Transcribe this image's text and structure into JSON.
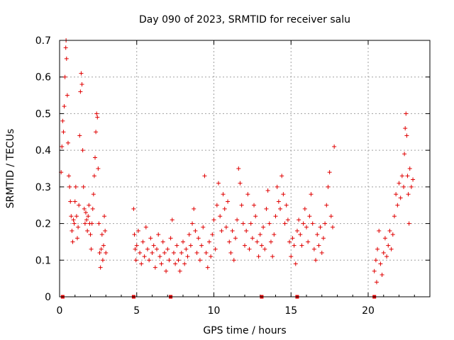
{
  "chart_data": {
    "type": "scatter",
    "title": "Day 090 of 2023, SRMTID for receiver salu",
    "xlabel": "GPS time / hours",
    "ylabel": "SRMTID / TECUs",
    "xlim": [
      0,
      24
    ],
    "ylim": [
      0,
      0.7
    ],
    "x_ticks": [
      0,
      5,
      10,
      15,
      20
    ],
    "y_ticks": [
      0,
      0.1,
      0.2,
      0.3,
      0.4,
      0.5,
      0.6,
      0.7
    ],
    "x_tick_labels": [
      "0",
      "5",
      "10",
      "15",
      "20"
    ],
    "y_tick_labels": [
      "0",
      "0.1",
      "0.2",
      "0.3",
      "0.4",
      "0.5",
      "0.6",
      "0.7"
    ],
    "grid": true,
    "marker": "+",
    "series": [
      {
        "name": "SRMTID",
        "color": "#e00000",
        "points": [
          [
            0.1,
            0.34
          ],
          [
            0.15,
            0.41
          ],
          [
            0.2,
            0.48
          ],
          [
            0.25,
            0.45
          ],
          [
            0.3,
            0.52
          ],
          [
            0.35,
            0.6
          ],
          [
            0.4,
            0.68
          ],
          [
            0.42,
            0.7
          ],
          [
            0.45,
            0.65
          ],
          [
            0.5,
            0.55
          ],
          [
            0.55,
            0.42
          ],
          [
            0.6,
            0.33
          ],
          [
            0.65,
            0.3
          ],
          [
            0.7,
            0.26
          ],
          [
            0.75,
            0.22
          ],
          [
            0.8,
            0.18
          ],
          [
            0.85,
            0.15
          ],
          [
            0.9,
            0.21
          ],
          [
            0.95,
            0.2
          ],
          [
            1.0,
            0.26
          ],
          [
            1.05,
            0.3
          ],
          [
            1.1,
            0.22
          ],
          [
            1.15,
            0.16
          ],
          [
            1.2,
            0.19
          ],
          [
            1.25,
            0.25
          ],
          [
            1.3,
            0.44
          ],
          [
            1.35,
            0.56
          ],
          [
            1.4,
            0.61
          ],
          [
            1.45,
            0.58
          ],
          [
            1.5,
            0.4
          ],
          [
            1.55,
            0.3
          ],
          [
            1.6,
            0.24
          ],
          [
            1.65,
            0.2
          ],
          [
            1.7,
            0.23
          ],
          [
            1.75,
            0.21
          ],
          [
            1.8,
            0.18
          ],
          [
            1.85,
            0.22
          ],
          [
            1.9,
            0.25
          ],
          [
            1.95,
            0.2
          ],
          [
            2.0,
            0.17
          ],
          [
            2.05,
            0.13
          ],
          [
            2.1,
            0.2
          ],
          [
            2.15,
            0.24
          ],
          [
            2.2,
            0.28
          ],
          [
            2.25,
            0.33
          ],
          [
            2.3,
            0.38
          ],
          [
            2.35,
            0.45
          ],
          [
            2.4,
            0.5
          ],
          [
            2.45,
            0.49
          ],
          [
            2.5,
            0.35
          ],
          [
            2.55,
            0.2
          ],
          [
            2.6,
            0.12
          ],
          [
            2.65,
            0.08
          ],
          [
            2.7,
            0.13
          ],
          [
            2.75,
            0.17
          ],
          [
            2.8,
            0.1
          ],
          [
            2.85,
            0.14
          ],
          [
            2.9,
            0.22
          ],
          [
            2.95,
            0.18
          ],
          [
            3.0,
            0.12
          ],
          [
            4.8,
            0.24
          ],
          [
            4.85,
            0.17
          ],
          [
            4.9,
            0.13
          ],
          [
            4.95,
            0.1
          ],
          [
            5.0,
            0.14
          ],
          [
            5.1,
            0.18
          ],
          [
            5.2,
            0.12
          ],
          [
            5.3,
            0.09
          ],
          [
            5.4,
            0.15
          ],
          [
            5.5,
            0.11
          ],
          [
            5.6,
            0.19
          ],
          [
            5.7,
            0.13
          ],
          [
            5.8,
            0.1
          ],
          [
            5.9,
            0.16
          ],
          [
            6.0,
            0.12
          ],
          [
            6.1,
            0.14
          ],
          [
            6.2,
            0.08
          ],
          [
            6.3,
            0.13
          ],
          [
            6.4,
            0.17
          ],
          [
            6.5,
            0.11
          ],
          [
            6.6,
            0.09
          ],
          [
            6.7,
            0.15
          ],
          [
            6.8,
            0.12
          ],
          [
            6.9,
            0.07
          ],
          [
            7.0,
            0.13
          ],
          [
            7.1,
            0.1
          ],
          [
            7.2,
            0.16
          ],
          [
            7.3,
            0.21
          ],
          [
            7.4,
            0.12
          ],
          [
            7.5,
            0.09
          ],
          [
            7.6,
            0.14
          ],
          [
            7.7,
            0.1
          ],
          [
            7.8,
            0.07
          ],
          [
            7.9,
            0.12
          ],
          [
            8.0,
            0.15
          ],
          [
            8.1,
            0.09
          ],
          [
            8.2,
            0.13
          ],
          [
            8.3,
            0.11
          ],
          [
            8.4,
            0.17
          ],
          [
            8.5,
            0.14
          ],
          [
            8.6,
            0.2
          ],
          [
            8.7,
            0.24
          ],
          [
            8.8,
            0.18
          ],
          [
            8.9,
            0.12
          ],
          [
            9.0,
            0.16
          ],
          [
            9.1,
            0.1
          ],
          [
            9.2,
            0.14
          ],
          [
            9.3,
            0.19
          ],
          [
            9.4,
            0.33
          ],
          [
            9.5,
            0.12
          ],
          [
            9.6,
            0.08
          ],
          [
            9.7,
            0.15
          ],
          [
            9.8,
            0.11
          ],
          [
            9.9,
            0.17
          ],
          [
            10.0,
            0.21
          ],
          [
            10.1,
            0.13
          ],
          [
            10.2,
            0.25
          ],
          [
            10.3,
            0.31
          ],
          [
            10.4,
            0.22
          ],
          [
            10.5,
            0.18
          ],
          [
            10.6,
            0.28
          ],
          [
            10.7,
            0.24
          ],
          [
            10.8,
            0.19
          ],
          [
            10.9,
            0.26
          ],
          [
            11.0,
            0.15
          ],
          [
            11.1,
            0.12
          ],
          [
            11.2,
            0.18
          ],
          [
            11.3,
            0.1
          ],
          [
            11.4,
            0.16
          ],
          [
            11.5,
            0.21
          ],
          [
            11.6,
            0.35
          ],
          [
            11.7,
            0.31
          ],
          [
            11.8,
            0.25
          ],
          [
            11.9,
            0.2
          ],
          [
            12.0,
            0.14
          ],
          [
            12.1,
            0.18
          ],
          [
            12.2,
            0.28
          ],
          [
            12.3,
            0.13
          ],
          [
            12.4,
            0.2
          ],
          [
            12.5,
            0.16
          ],
          [
            12.6,
            0.25
          ],
          [
            12.7,
            0.22
          ],
          [
            12.8,
            0.15
          ],
          [
            12.9,
            0.11
          ],
          [
            13.0,
            0.17
          ],
          [
            13.1,
            0.14
          ],
          [
            13.2,
            0.19
          ],
          [
            13.3,
            0.13
          ],
          [
            13.4,
            0.24
          ],
          [
            13.5,
            0.29
          ],
          [
            13.6,
            0.2
          ],
          [
            13.7,
            0.15
          ],
          [
            13.8,
            0.11
          ],
          [
            13.9,
            0.17
          ],
          [
            14.0,
            0.22
          ],
          [
            14.1,
            0.3
          ],
          [
            14.2,
            0.26
          ],
          [
            14.3,
            0.24
          ],
          [
            14.4,
            0.33
          ],
          [
            14.5,
            0.28
          ],
          [
            14.6,
            0.2
          ],
          [
            14.7,
            0.25
          ],
          [
            14.8,
            0.21
          ],
          [
            14.9,
            0.15
          ],
          [
            15.0,
            0.11
          ],
          [
            15.1,
            0.16
          ],
          [
            15.2,
            0.14
          ],
          [
            15.3,
            0.09
          ],
          [
            15.4,
            0.18
          ],
          [
            15.5,
            0.21
          ],
          [
            15.6,
            0.17
          ],
          [
            15.7,
            0.14
          ],
          [
            15.8,
            0.2
          ],
          [
            15.9,
            0.24
          ],
          [
            16.0,
            0.19
          ],
          [
            16.1,
            0.15
          ],
          [
            16.2,
            0.22
          ],
          [
            16.3,
            0.28
          ],
          [
            16.4,
            0.2
          ],
          [
            16.5,
            0.13
          ],
          [
            16.6,
            0.1
          ],
          [
            16.7,
            0.17
          ],
          [
            16.8,
            0.14
          ],
          [
            16.9,
            0.19
          ],
          [
            17.0,
            0.12
          ],
          [
            17.1,
            0.16
          ],
          [
            17.2,
            0.2
          ],
          [
            17.3,
            0.25
          ],
          [
            17.4,
            0.3
          ],
          [
            17.5,
            0.34
          ],
          [
            17.6,
            0.22
          ],
          [
            17.7,
            0.19
          ],
          [
            17.8,
            0.41
          ],
          [
            20.4,
            0.07
          ],
          [
            20.5,
            0.1
          ],
          [
            20.55,
            0.04
          ],
          [
            20.6,
            0.13
          ],
          [
            20.7,
            0.18
          ],
          [
            20.8,
            0.09
          ],
          [
            20.9,
            0.06
          ],
          [
            21.0,
            0.12
          ],
          [
            21.1,
            0.16
          ],
          [
            21.2,
            0.11
          ],
          [
            21.3,
            0.14
          ],
          [
            21.4,
            0.18
          ],
          [
            21.5,
            0.13
          ],
          [
            21.6,
            0.17
          ],
          [
            21.7,
            0.22
          ],
          [
            21.8,
            0.28
          ],
          [
            21.9,
            0.25
          ],
          [
            22.0,
            0.31
          ],
          [
            22.1,
            0.27
          ],
          [
            22.2,
            0.33
          ],
          [
            22.3,
            0.3
          ],
          [
            22.35,
            0.39
          ],
          [
            22.4,
            0.46
          ],
          [
            22.45,
            0.5
          ],
          [
            22.5,
            0.44
          ],
          [
            22.55,
            0.33
          ],
          [
            22.6,
            0.28
          ],
          [
            22.65,
            0.2
          ],
          [
            22.7,
            0.35
          ],
          [
            22.8,
            0.3
          ],
          [
            22.9,
            0.32
          ]
        ]
      }
    ],
    "gap_markers_x": [
      0.2,
      4.8,
      7.2,
      13.1,
      15.4,
      20.4
    ]
  }
}
